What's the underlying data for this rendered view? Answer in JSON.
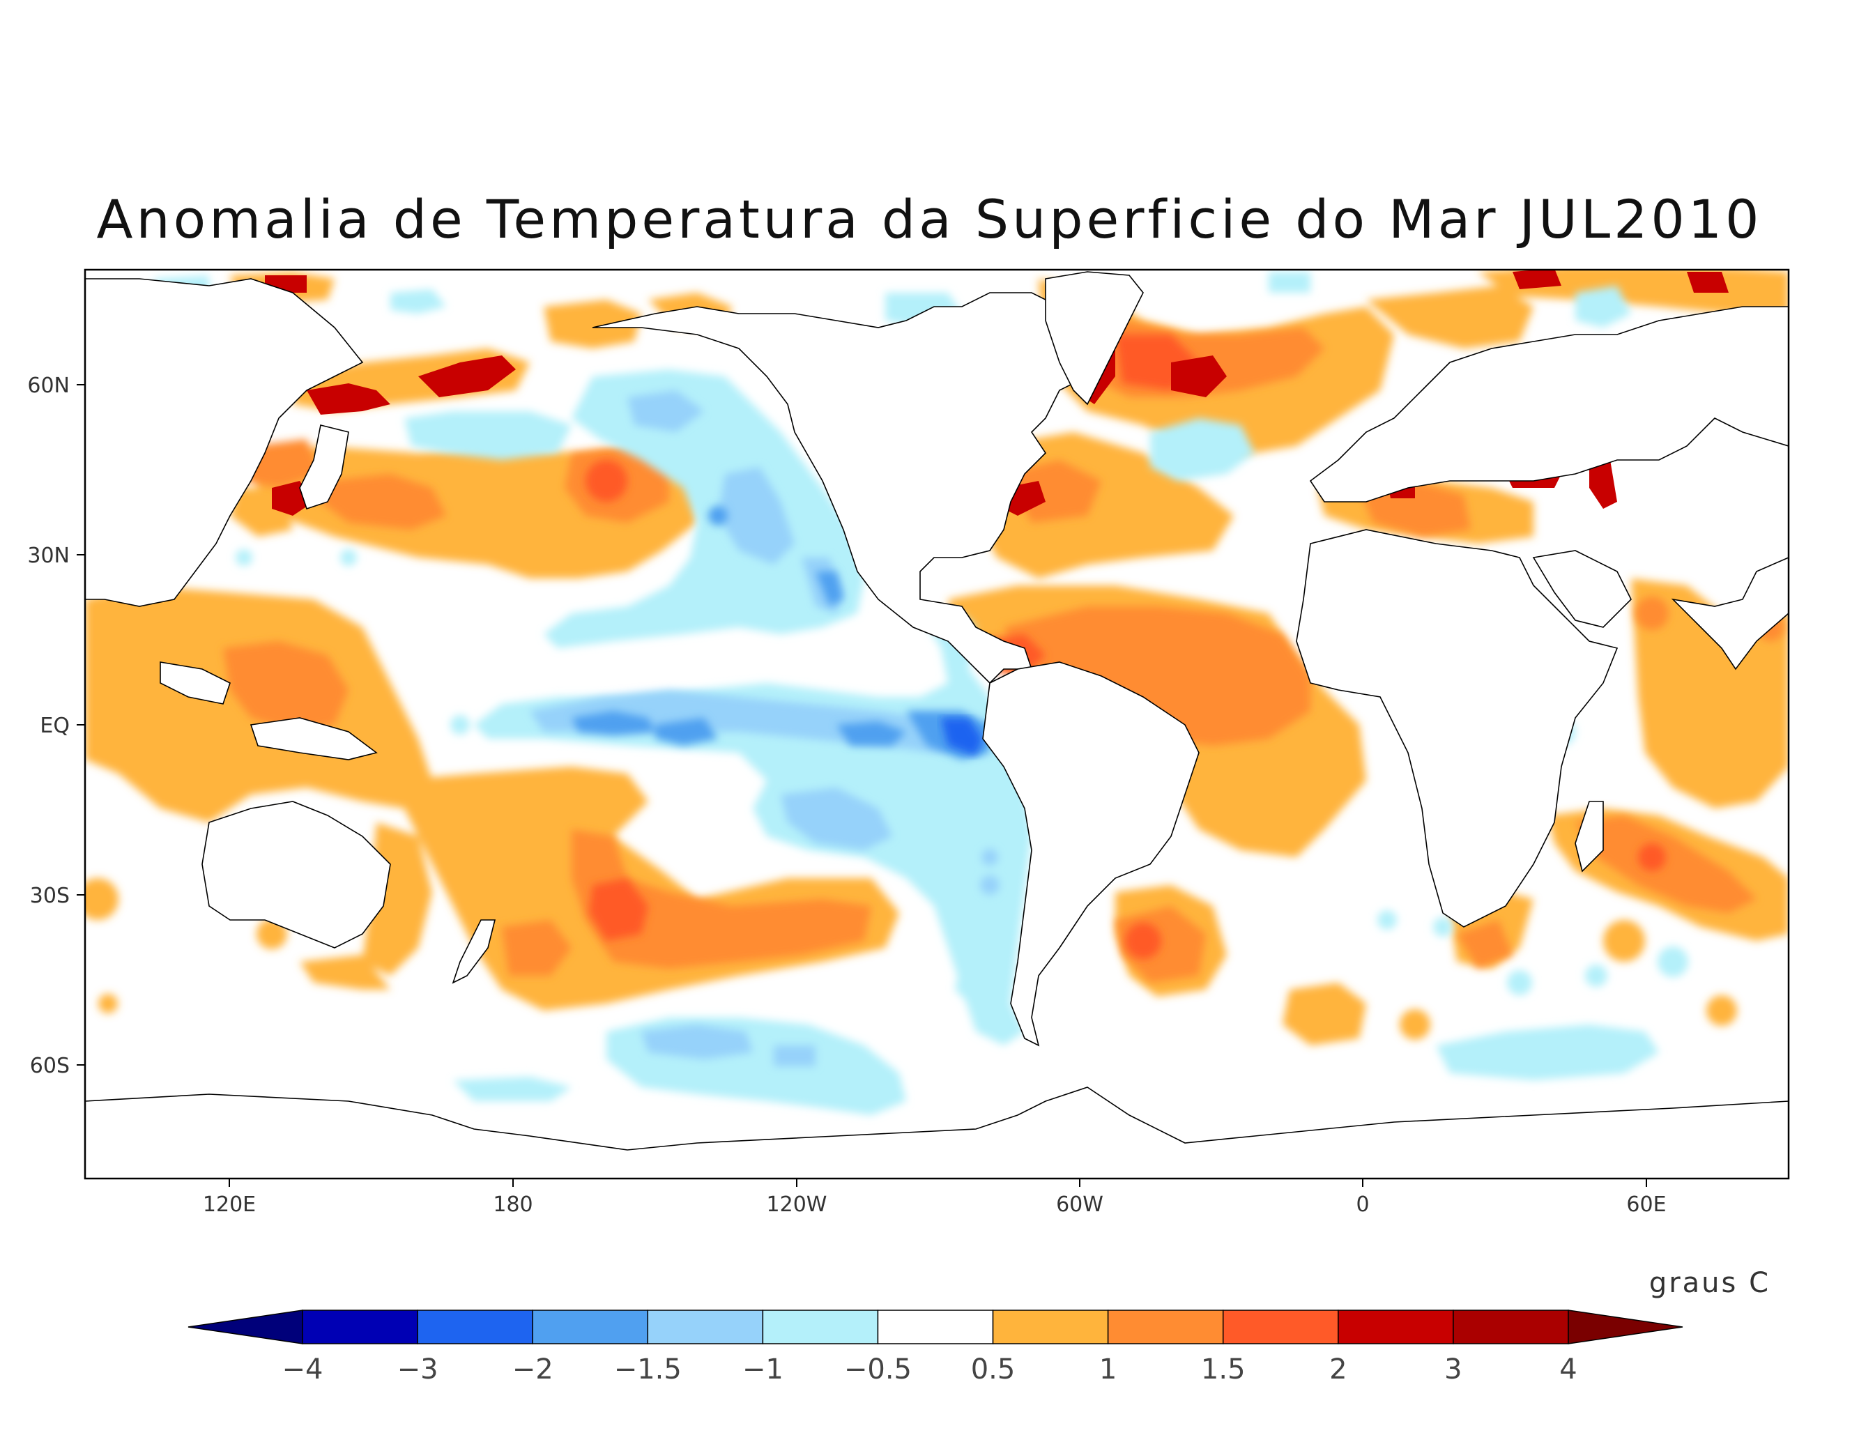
{
  "title": "Anomalia de Temperatura da Superficie do Mar JUL2010",
  "map": {
    "lat_labels": [
      "60N",
      "30N",
      "EQ",
      "30S",
      "60S"
    ],
    "lon_labels": [
      "120E",
      "180",
      "120W",
      "60W",
      "0",
      "60E"
    ]
  },
  "colorbar": {
    "units": "graus C",
    "labels": [
      "-4",
      "-3",
      "-2",
      "-1.5",
      "-1",
      "-0.5",
      "0.5",
      "1",
      "1.5",
      "2",
      "3",
      "4"
    ],
    "colors": [
      "#00007a",
      "#0000b4",
      "#1e64f0",
      "#50a0f0",
      "#96d2fa",
      "#b4f0fa",
      "#ffffff",
      "#ffb43c",
      "#ff8c32",
      "#ff5a28",
      "#c80000",
      "#aa0000",
      "#7a0000"
    ]
  },
  "colors": {
    "land": "#ffffff",
    "coast": "#000000"
  }
}
